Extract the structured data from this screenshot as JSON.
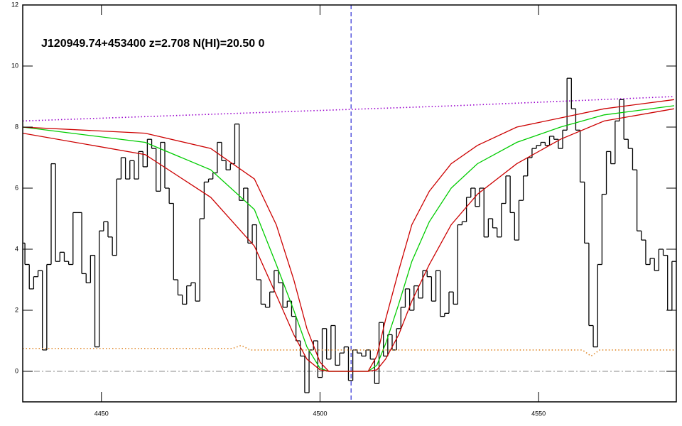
{
  "chart_data": {
    "type": "line",
    "title": "J120949.74+453400 z=2.708 N(HI)=20.50 0",
    "xlim": [
      4432,
      4581.5
    ],
    "ylim": [
      -1,
      12
    ],
    "xticks": [
      4450,
      4500,
      4550
    ],
    "yticks": [
      0,
      2,
      4,
      6,
      8,
      10,
      12
    ],
    "hlines": [
      {
        "value": 0,
        "color": "#888888",
        "style": "dashdot"
      }
    ],
    "vlines": [
      {
        "value": 4507.1,
        "color": "#0000cc",
        "style": "dashed"
      }
    ],
    "series": [
      {
        "color": "#000000",
        "line_style": "step",
        "x": [
          4432,
          4433,
          4434,
          4435,
          4436,
          4437,
          4438,
          4439,
          4440,
          4441,
          4442,
          4443,
          4444,
          4445,
          4446,
          4447,
          4448,
          4449,
          4450,
          4451,
          4452,
          4453,
          4454,
          4455,
          4456,
          4457,
          4458,
          4459,
          4460,
          4461,
          4462,
          4463,
          4464,
          4465,
          4466,
          4467,
          4468,
          4469,
          4470,
          4471,
          4472,
          4473,
          4474,
          4475,
          4476,
          4477,
          4478,
          4479,
          4480,
          4481,
          4482,
          4483,
          4484,
          4485,
          4486,
          4487,
          4488,
          4489,
          4490,
          4491,
          4492,
          4493,
          4494,
          4495,
          4496,
          4497,
          4498,
          4499,
          4500,
          4501,
          4502,
          4503,
          4504,
          4505,
          4506,
          4507,
          4508,
          4509,
          4510,
          4511,
          4512,
          4513,
          4514,
          4515,
          4516,
          4517,
          4518,
          4519,
          4520,
          4521,
          4522,
          4523,
          4524,
          4525,
          4526,
          4527,
          4528,
          4529,
          4530,
          4531,
          4532,
          4533,
          4534,
          4535,
          4536,
          4537,
          4538,
          4539,
          4540,
          4541,
          4542,
          4543,
          4544,
          4545,
          4546,
          4547,
          4548,
          4549,
          4550,
          4551,
          4552,
          4553,
          4554,
          4555,
          4556,
          4557,
          4558,
          4559,
          4560,
          4561,
          4562,
          4563,
          4564,
          4565,
          4566,
          4567,
          4568,
          4569,
          4570,
          4571,
          4572,
          4573,
          4574,
          4575,
          4576,
          4577,
          4578,
          4579,
          4580,
          4581
        ],
        "values": [
          4.2,
          3.5,
          2.7,
          3.1,
          3.3,
          0.7,
          3.5,
          6.8,
          3.6,
          3.9,
          3.6,
          3.5,
          5.2,
          5.2,
          3.2,
          2.9,
          3.8,
          0.8,
          4.6,
          4.9,
          4.4,
          3.8,
          6.3,
          7.0,
          6.3,
          6.9,
          6.3,
          7.2,
          6.7,
          7.6,
          7.3,
          5.9,
          7.5,
          6.0,
          5.5,
          3.0,
          2.5,
          2.2,
          2.8,
          2.9,
          2.3,
          5.0,
          6.2,
          6.3,
          6.5,
          7.5,
          6.9,
          6.6,
          6.8,
          8.1,
          5.6,
          6.0,
          4.2,
          4.8,
          3.0,
          2.2,
          2.1,
          2.6,
          3.3,
          2.9,
          2.1,
          2.3,
          1.8,
          1.0,
          0.5,
          -0.7,
          0.7,
          1.0,
          -0.2,
          1.4,
          0.4,
          1.5,
          0.2,
          0.6,
          0.8,
          -0.3,
          0.7,
          0.6,
          0.5,
          0.7,
          0.4,
          -0.4,
          1.6,
          0.5,
          1.2,
          0.7,
          1.4,
          2.1,
          2.7,
          2.0,
          2.8,
          2.4,
          3.3,
          3.1,
          2.3,
          3.3,
          1.8,
          1.9,
          2.6,
          2.2,
          4.8,
          4.9,
          5.7,
          6.0,
          5.4,
          6.0,
          4.4,
          5.0,
          4.7,
          4.4,
          5.5,
          6.4,
          5.2,
          4.3,
          5.6,
          6.4,
          7.0,
          7.3,
          7.4,
          7.5,
          7.4,
          7.7,
          7.6,
          7.3,
          7.9,
          9.6,
          8.6,
          7.9,
          6.2,
          4.2,
          1.5,
          0.8,
          3.5,
          5.8,
          7.2,
          6.8,
          8.2,
          8.9,
          7.6,
          7.3,
          6.6,
          4.6,
          4.3,
          3.5,
          3.7,
          3.3,
          4.0,
          3.8,
          2.0,
          3.6
        ]
      },
      {
        "color": "#00cc00",
        "line_style": "solid",
        "x": [
          4432,
          4460,
          4475,
          4485,
          4490,
          4494,
          4497,
          4500,
          4502,
          4511,
          4513,
          4515,
          4518,
          4521,
          4525,
          4530,
          4536,
          4545,
          4555,
          4565,
          4581
        ],
        "values": [
          8.0,
          7.5,
          6.6,
          5.3,
          3.5,
          2.0,
          0.8,
          0.1,
          0,
          0,
          0.2,
          0.9,
          2.2,
          3.6,
          4.9,
          6.0,
          6.8,
          7.5,
          8.0,
          8.4,
          8.7
        ]
      },
      {
        "color": "#cc0000",
        "line_style": "solid",
        "x": [
          4432,
          4460,
          4475,
          4485,
          4490,
          4494,
          4497,
          4500,
          4502,
          4511,
          4513,
          4515,
          4518,
          4521,
          4525,
          4530,
          4536,
          4545,
          4555,
          4565,
          4581
        ],
        "values": [
          8.0,
          7.8,
          7.3,
          6.3,
          4.8,
          3.0,
          1.4,
          0.3,
          0,
          0,
          0.5,
          1.7,
          3.3,
          4.8,
          5.9,
          6.8,
          7.4,
          8.0,
          8.3,
          8.6,
          8.9
        ]
      },
      {
        "color": "#cc0000",
        "line_style": "solid",
        "x": [
          4432,
          4460,
          4475,
          4485,
          4490,
          4494,
          4497,
          4500,
          4502,
          4511,
          4513,
          4515,
          4518,
          4521,
          4525,
          4530,
          4536,
          4545,
          4555,
          4565,
          4581
        ],
        "values": [
          7.8,
          7.1,
          5.7,
          4.1,
          2.5,
          1.2,
          0.4,
          0.05,
          0,
          0,
          0.05,
          0.4,
          1.2,
          2.3,
          3.5,
          4.8,
          5.8,
          6.8,
          7.6,
          8.2,
          8.6
        ]
      },
      {
        "color": "#9900cc",
        "line_style": "dotted",
        "x": [
          4432,
          4481,
          4531,
          4581
        ],
        "values": [
          8.2,
          8.45,
          8.7,
          9.0
        ]
      },
      {
        "color": "#e08a2c",
        "line_style": "dotted",
        "x": [
          4432,
          4480,
          4482,
          4484,
          4530,
          4560,
          4562,
          4564,
          4581
        ],
        "values": [
          0.75,
          0.75,
          0.85,
          0.7,
          0.7,
          0.7,
          0.5,
          0.7,
          0.7
        ]
      }
    ]
  }
}
